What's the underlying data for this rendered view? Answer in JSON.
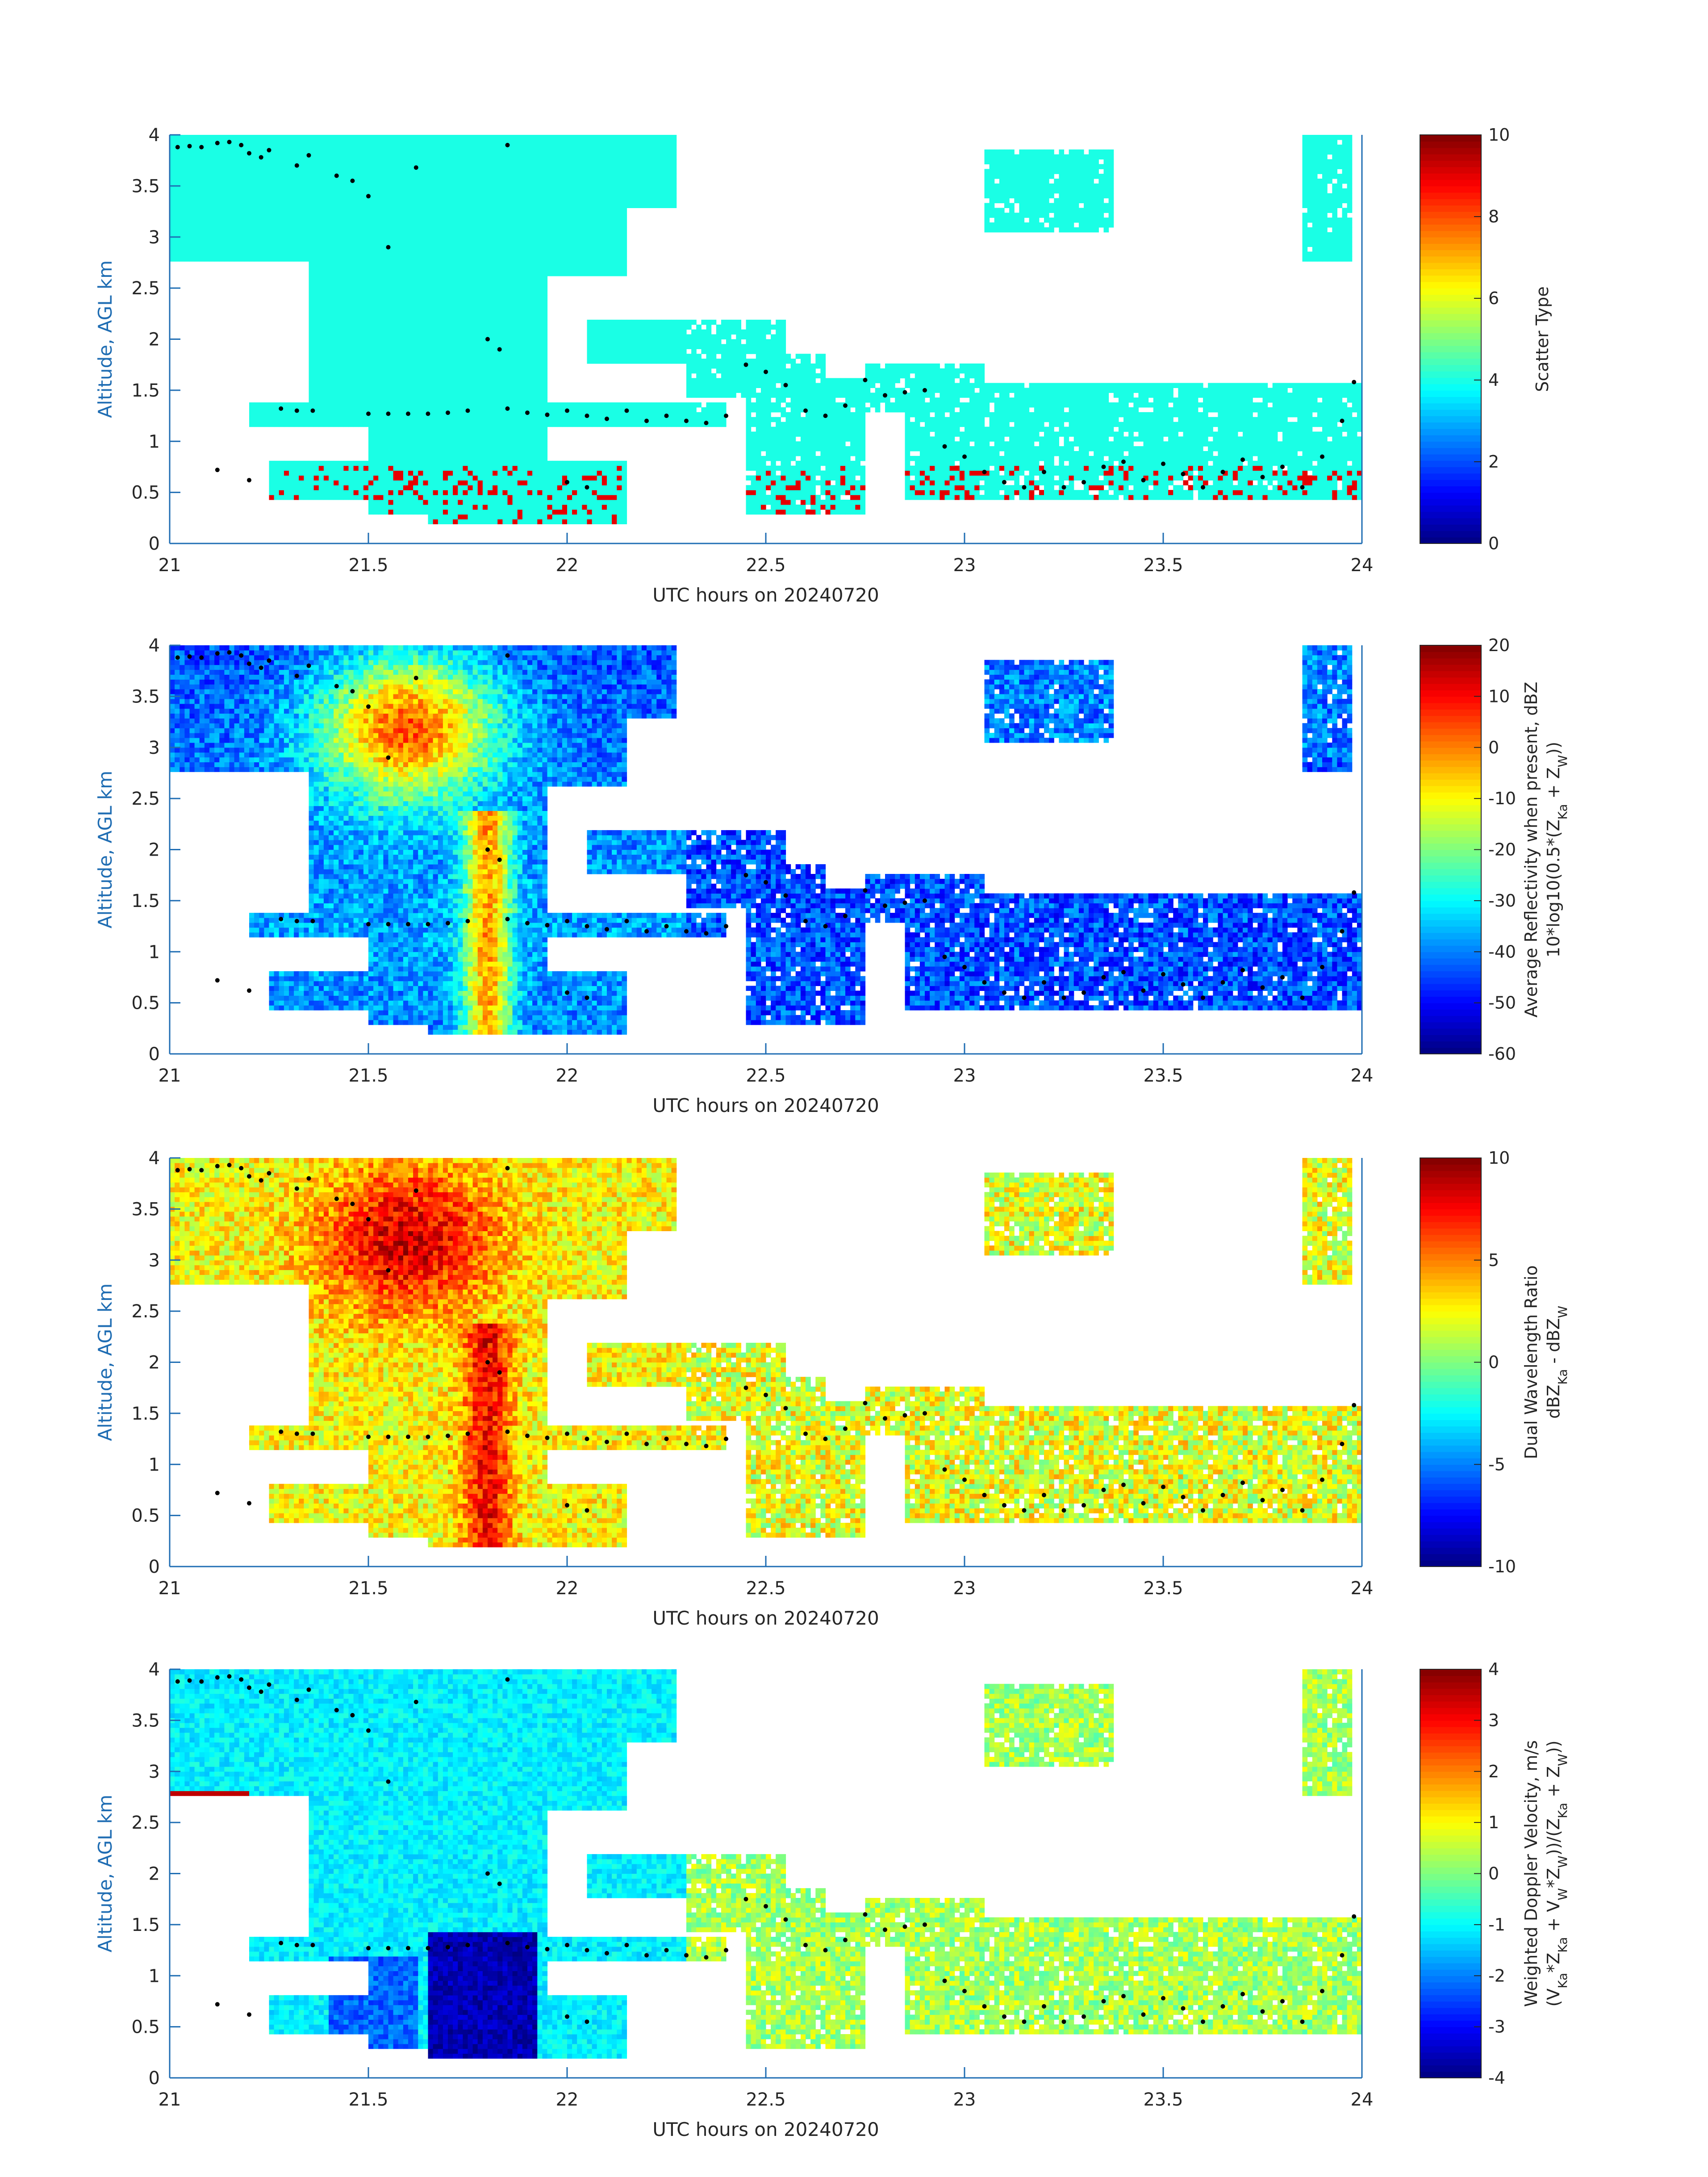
{
  "chart_data": [
    {
      "type": "heatmap",
      "xlabel": "UTC hours on 20240720",
      "ylabel": "Altitude, AGL km",
      "xlim": [
        21,
        24
      ],
      "ylim": [
        0,
        4
      ],
      "xticks": [
        "21",
        "21.5",
        "22",
        "22.5",
        "23",
        "23.5",
        "24"
      ],
      "yticks": [
        "0",
        "0.5",
        "1",
        "1.5",
        "2",
        "2.5",
        "3",
        "3.5",
        "4"
      ],
      "colorbar": {
        "label_lines": [
          "Scatter Type"
        ],
        "range": [
          0,
          10
        ],
        "ticks": [
          "0",
          "2",
          "4",
          "6",
          "8",
          "10"
        ],
        "colormap": "jet"
      },
      "field": "scatter_type",
      "dominant_value": 4,
      "secondary_value": 9
    },
    {
      "type": "heatmap",
      "xlabel": "UTC hours on 20240720",
      "ylabel": "Altitude, AGL km",
      "xlim": [
        21,
        24
      ],
      "ylim": [
        0,
        4
      ],
      "xticks": [
        "21",
        "21.5",
        "22",
        "22.5",
        "23",
        "23.5",
        "24"
      ],
      "yticks": [
        "0",
        "0.5",
        "1",
        "1.5",
        "2",
        "2.5",
        "3",
        "3.5",
        "4"
      ],
      "colorbar": {
        "label_lines": [
          "Average Reflectivity when present, dBZ",
          "10*log10(0.5*(Z",
          "Ka",
          " + Z",
          "W",
          "))"
        ],
        "range": [
          -60,
          20
        ],
        "ticks": [
          "-60",
          "-50",
          "-40",
          "-30",
          "-20",
          "-10",
          "0",
          "10",
          "20"
        ],
        "colormap": "jet"
      },
      "field": "reflectivity_dbz"
    },
    {
      "type": "heatmap",
      "xlabel": "UTC hours on 20240720",
      "ylabel": "Altitude, AGL km",
      "xlim": [
        21,
        24
      ],
      "ylim": [
        0,
        4
      ],
      "xticks": [
        "21",
        "21.5",
        "22",
        "22.5",
        "23",
        "23.5",
        "24"
      ],
      "yticks": [
        "0",
        "0.5",
        "1",
        "1.5",
        "2",
        "2.5",
        "3",
        "3.5",
        "4"
      ],
      "colorbar": {
        "label_lines": [
          "Dual Wavelength Ratio",
          "dBZ",
          "Ka",
          " - dBZ",
          "W"
        ],
        "range": [
          -10,
          10
        ],
        "ticks": [
          "-10",
          "-5",
          "0",
          "5",
          "10"
        ],
        "colormap": "jet"
      },
      "field": "dual_wavelength_ratio"
    },
    {
      "type": "heatmap",
      "xlabel": "UTC hours on 20240720",
      "ylabel": "Altitude, AGL km",
      "xlim": [
        21,
        24
      ],
      "ylim": [
        0,
        4
      ],
      "xticks": [
        "21",
        "21.5",
        "22",
        "22.5",
        "23",
        "23.5",
        "24"
      ],
      "yticks": [
        "0",
        "0.5",
        "1",
        "1.5",
        "2",
        "2.5",
        "3",
        "3.5",
        "4"
      ],
      "colorbar": {
        "label_lines": [
          "Weighted Doppler Velocity, m/s",
          "(V",
          "Ka",
          "*Z",
          "Ka",
          " + V",
          "W",
          "*Z",
          "W",
          "))/(Z",
          "Ka",
          " + Z",
          "W",
          "))"
        ],
        "range": [
          -4,
          4
        ],
        "ticks": [
          "-4",
          "-3",
          "-2",
          "-1",
          "0",
          "1",
          "2",
          "3",
          "4"
        ],
        "colormap": "jet"
      },
      "field": "doppler_velocity_ms"
    }
  ],
  "echo_regions": [
    {
      "t0": 21.0,
      "t1": 21.35,
      "z0": 2.75,
      "z1": 4.0
    },
    {
      "t0": 21.35,
      "t1": 21.65,
      "z0": 1.2,
      "z1": 4.0
    },
    {
      "t0": 21.65,
      "t1": 21.95,
      "z0": 0.2,
      "z1": 4.0
    },
    {
      "t0": 21.95,
      "t1": 22.15,
      "z0": 2.6,
      "z1": 4.0
    },
    {
      "t0": 22.15,
      "t1": 22.28,
      "z0": 3.3,
      "z1": 4.0
    },
    {
      "t0": 21.2,
      "t1": 22.4,
      "z0": 1.15,
      "z1": 1.38
    },
    {
      "t0": 21.25,
      "t1": 21.5,
      "z0": 0.45,
      "z1": 0.8
    },
    {
      "t0": 21.5,
      "t1": 21.65,
      "z0": 0.3,
      "z1": 1.2
    },
    {
      "t0": 21.85,
      "t1": 22.15,
      "z0": 0.2,
      "z1": 0.8
    },
    {
      "t0": 22.05,
      "t1": 22.55,
      "z0": 1.75,
      "z1": 2.2
    },
    {
      "t0": 22.3,
      "t1": 22.65,
      "z0": 1.45,
      "z1": 1.85
    },
    {
      "t0": 22.45,
      "t1": 22.75,
      "z0": 0.3,
      "z1": 1.6
    },
    {
      "t0": 22.75,
      "t1": 23.05,
      "z0": 1.3,
      "z1": 1.75
    },
    {
      "t0": 22.85,
      "t1": 24.0,
      "z0": 0.45,
      "z1": 1.55
    },
    {
      "t0": 23.05,
      "t1": 23.38,
      "z0": 3.05,
      "z1": 3.85
    },
    {
      "t0": 23.85,
      "t1": 23.98,
      "z0": 2.75,
      "z1": 4.0
    }
  ],
  "melting_layer_points": [
    [
      21.02,
      3.88
    ],
    [
      21.05,
      3.89
    ],
    [
      21.08,
      3.88
    ],
    [
      21.12,
      3.92
    ],
    [
      21.15,
      3.93
    ],
    [
      21.18,
      3.9
    ],
    [
      21.2,
      3.82
    ],
    [
      21.23,
      3.78
    ],
    [
      21.25,
      3.85
    ],
    [
      21.32,
      3.7
    ],
    [
      21.35,
      3.8
    ],
    [
      21.42,
      3.6
    ],
    [
      21.46,
      3.55
    ],
    [
      21.5,
      3.4
    ],
    [
      21.55,
      2.9
    ],
    [
      21.62,
      3.68
    ],
    [
      21.85,
      3.9
    ],
    [
      21.8,
      2.0
    ],
    [
      21.83,
      1.9
    ],
    [
      21.28,
      1.32
    ],
    [
      21.32,
      1.3
    ],
    [
      21.36,
      1.3
    ],
    [
      21.5,
      1.27
    ],
    [
      21.55,
      1.27
    ],
    [
      21.6,
      1.27
    ],
    [
      21.65,
      1.27
    ],
    [
      21.7,
      1.28
    ],
    [
      21.75,
      1.3
    ],
    [
      21.85,
      1.32
    ],
    [
      21.9,
      1.28
    ],
    [
      21.95,
      1.26
    ],
    [
      22.0,
      1.3
    ],
    [
      22.05,
      1.25
    ],
    [
      22.1,
      1.22
    ],
    [
      22.15,
      1.3
    ],
    [
      22.2,
      1.2
    ],
    [
      22.25,
      1.25
    ],
    [
      22.3,
      1.2
    ],
    [
      22.35,
      1.18
    ],
    [
      22.4,
      1.25
    ],
    [
      22.45,
      1.75
    ],
    [
      22.5,
      1.68
    ],
    [
      22.55,
      1.55
    ],
    [
      22.6,
      1.3
    ],
    [
      22.65,
      1.25
    ],
    [
      22.7,
      1.35
    ],
    [
      22.75,
      1.6
    ],
    [
      22.8,
      1.45
    ],
    [
      22.85,
      1.48
    ],
    [
      22.9,
      1.5
    ],
    [
      22.95,
      0.95
    ],
    [
      23.0,
      0.85
    ],
    [
      23.05,
      0.7
    ],
    [
      23.1,
      0.6
    ],
    [
      23.15,
      0.55
    ],
    [
      23.2,
      0.7
    ],
    [
      23.25,
      0.55
    ],
    [
      23.3,
      0.6
    ],
    [
      23.35,
      0.75
    ],
    [
      23.4,
      0.8
    ],
    [
      23.45,
      0.62
    ],
    [
      23.5,
      0.78
    ],
    [
      23.55,
      0.68
    ],
    [
      23.6,
      0.55
    ],
    [
      23.65,
      0.7
    ],
    [
      23.7,
      0.82
    ],
    [
      23.75,
      0.65
    ],
    [
      23.8,
      0.75
    ],
    [
      23.85,
      0.55
    ],
    [
      23.9,
      0.85
    ],
    [
      23.95,
      1.2
    ],
    [
      23.98,
      1.58
    ],
    [
      22.0,
      0.6
    ],
    [
      22.05,
      0.55
    ],
    [
      21.12,
      0.72
    ],
    [
      21.2,
      0.62
    ]
  ]
}
